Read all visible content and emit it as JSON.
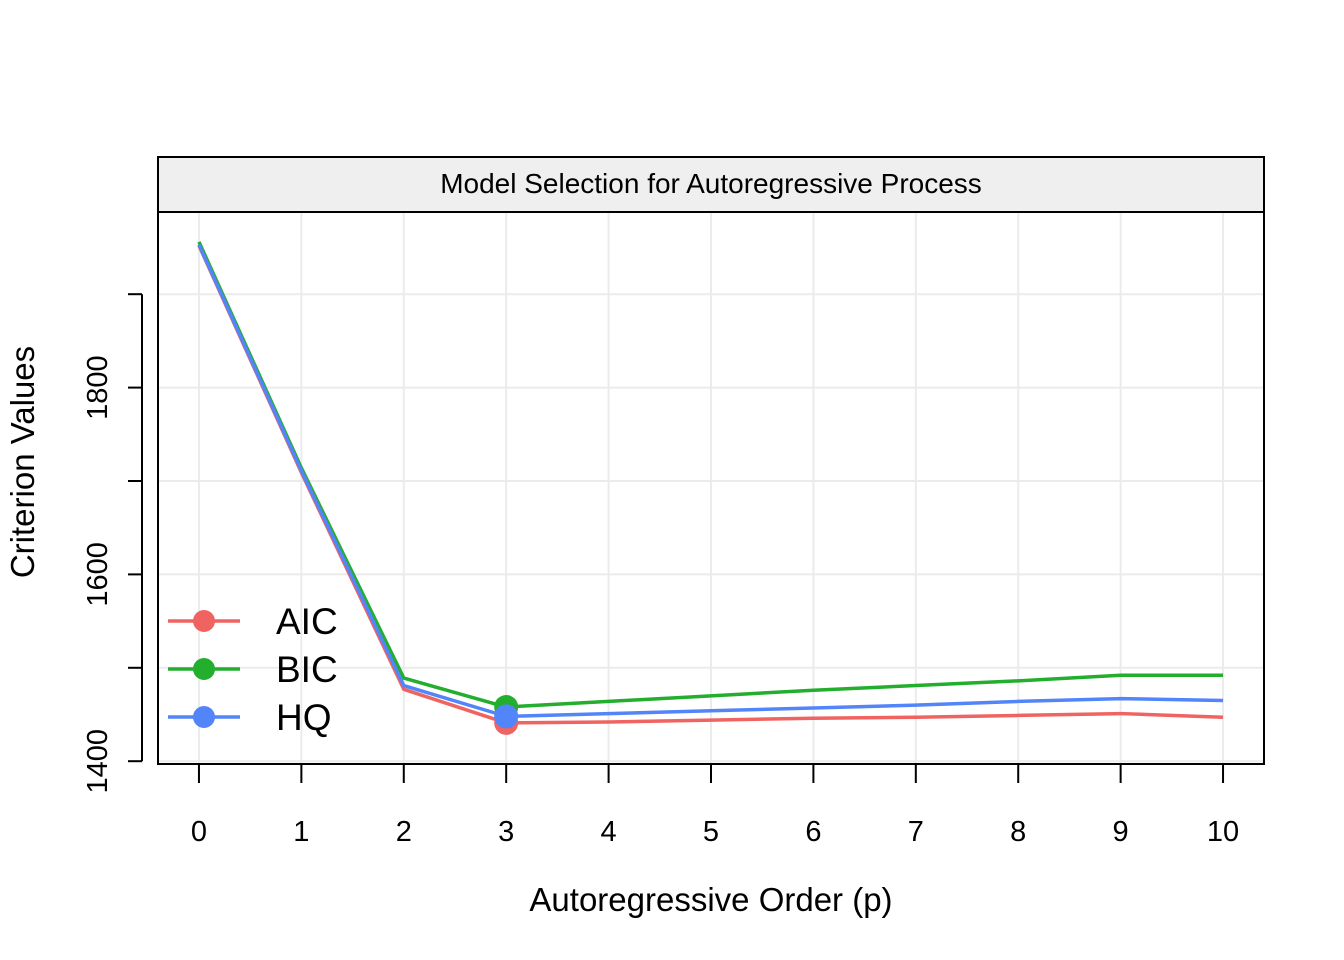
{
  "chart_data": {
    "type": "line",
    "title": "Model Selection for Autoregressive Process",
    "xlabel": "Autoregressive Order (p)",
    "ylabel": "Criterion Values",
    "x": [
      0,
      1,
      2,
      3,
      4,
      5,
      6,
      7,
      8,
      9,
      10
    ],
    "x_tick_labels": [
      "0",
      "1",
      "2",
      "3",
      "4",
      "5",
      "6",
      "7",
      "8",
      "9",
      "10"
    ],
    "y_tick_labels": [
      "1400",
      "1600",
      "1800"
    ],
    "y_ticks": [
      1400,
      1500,
      1600,
      1700,
      1800,
      1900
    ],
    "xlim": [
      -0.4,
      10.4
    ],
    "ylim": [
      1397,
      1988
    ],
    "grid": true,
    "legend_position": "bottom-left",
    "series": [
      {
        "name": "AIC",
        "color": "#EF6361",
        "values": [
          1952,
          1709,
          1477,
          1441,
          1442,
          1444,
          1446,
          1447,
          1449,
          1451,
          1447
        ],
        "highlight_x": 3,
        "highlight_y": 1441
      },
      {
        "name": "BIC",
        "color": "#23AE2E",
        "values": [
          1956,
          1714,
          1489,
          1458,
          1464,
          1470,
          1476,
          1481,
          1486,
          1492,
          1492
        ],
        "highlight_x": 3,
        "highlight_y": 1458
      },
      {
        "name": "HQ",
        "color": "#5284FA",
        "values": [
          1953,
          1711,
          1481,
          1448,
          1451,
          1454,
          1457,
          1460,
          1464,
          1467,
          1465
        ],
        "highlight_x": 3,
        "highlight_y": 1448
      }
    ]
  }
}
